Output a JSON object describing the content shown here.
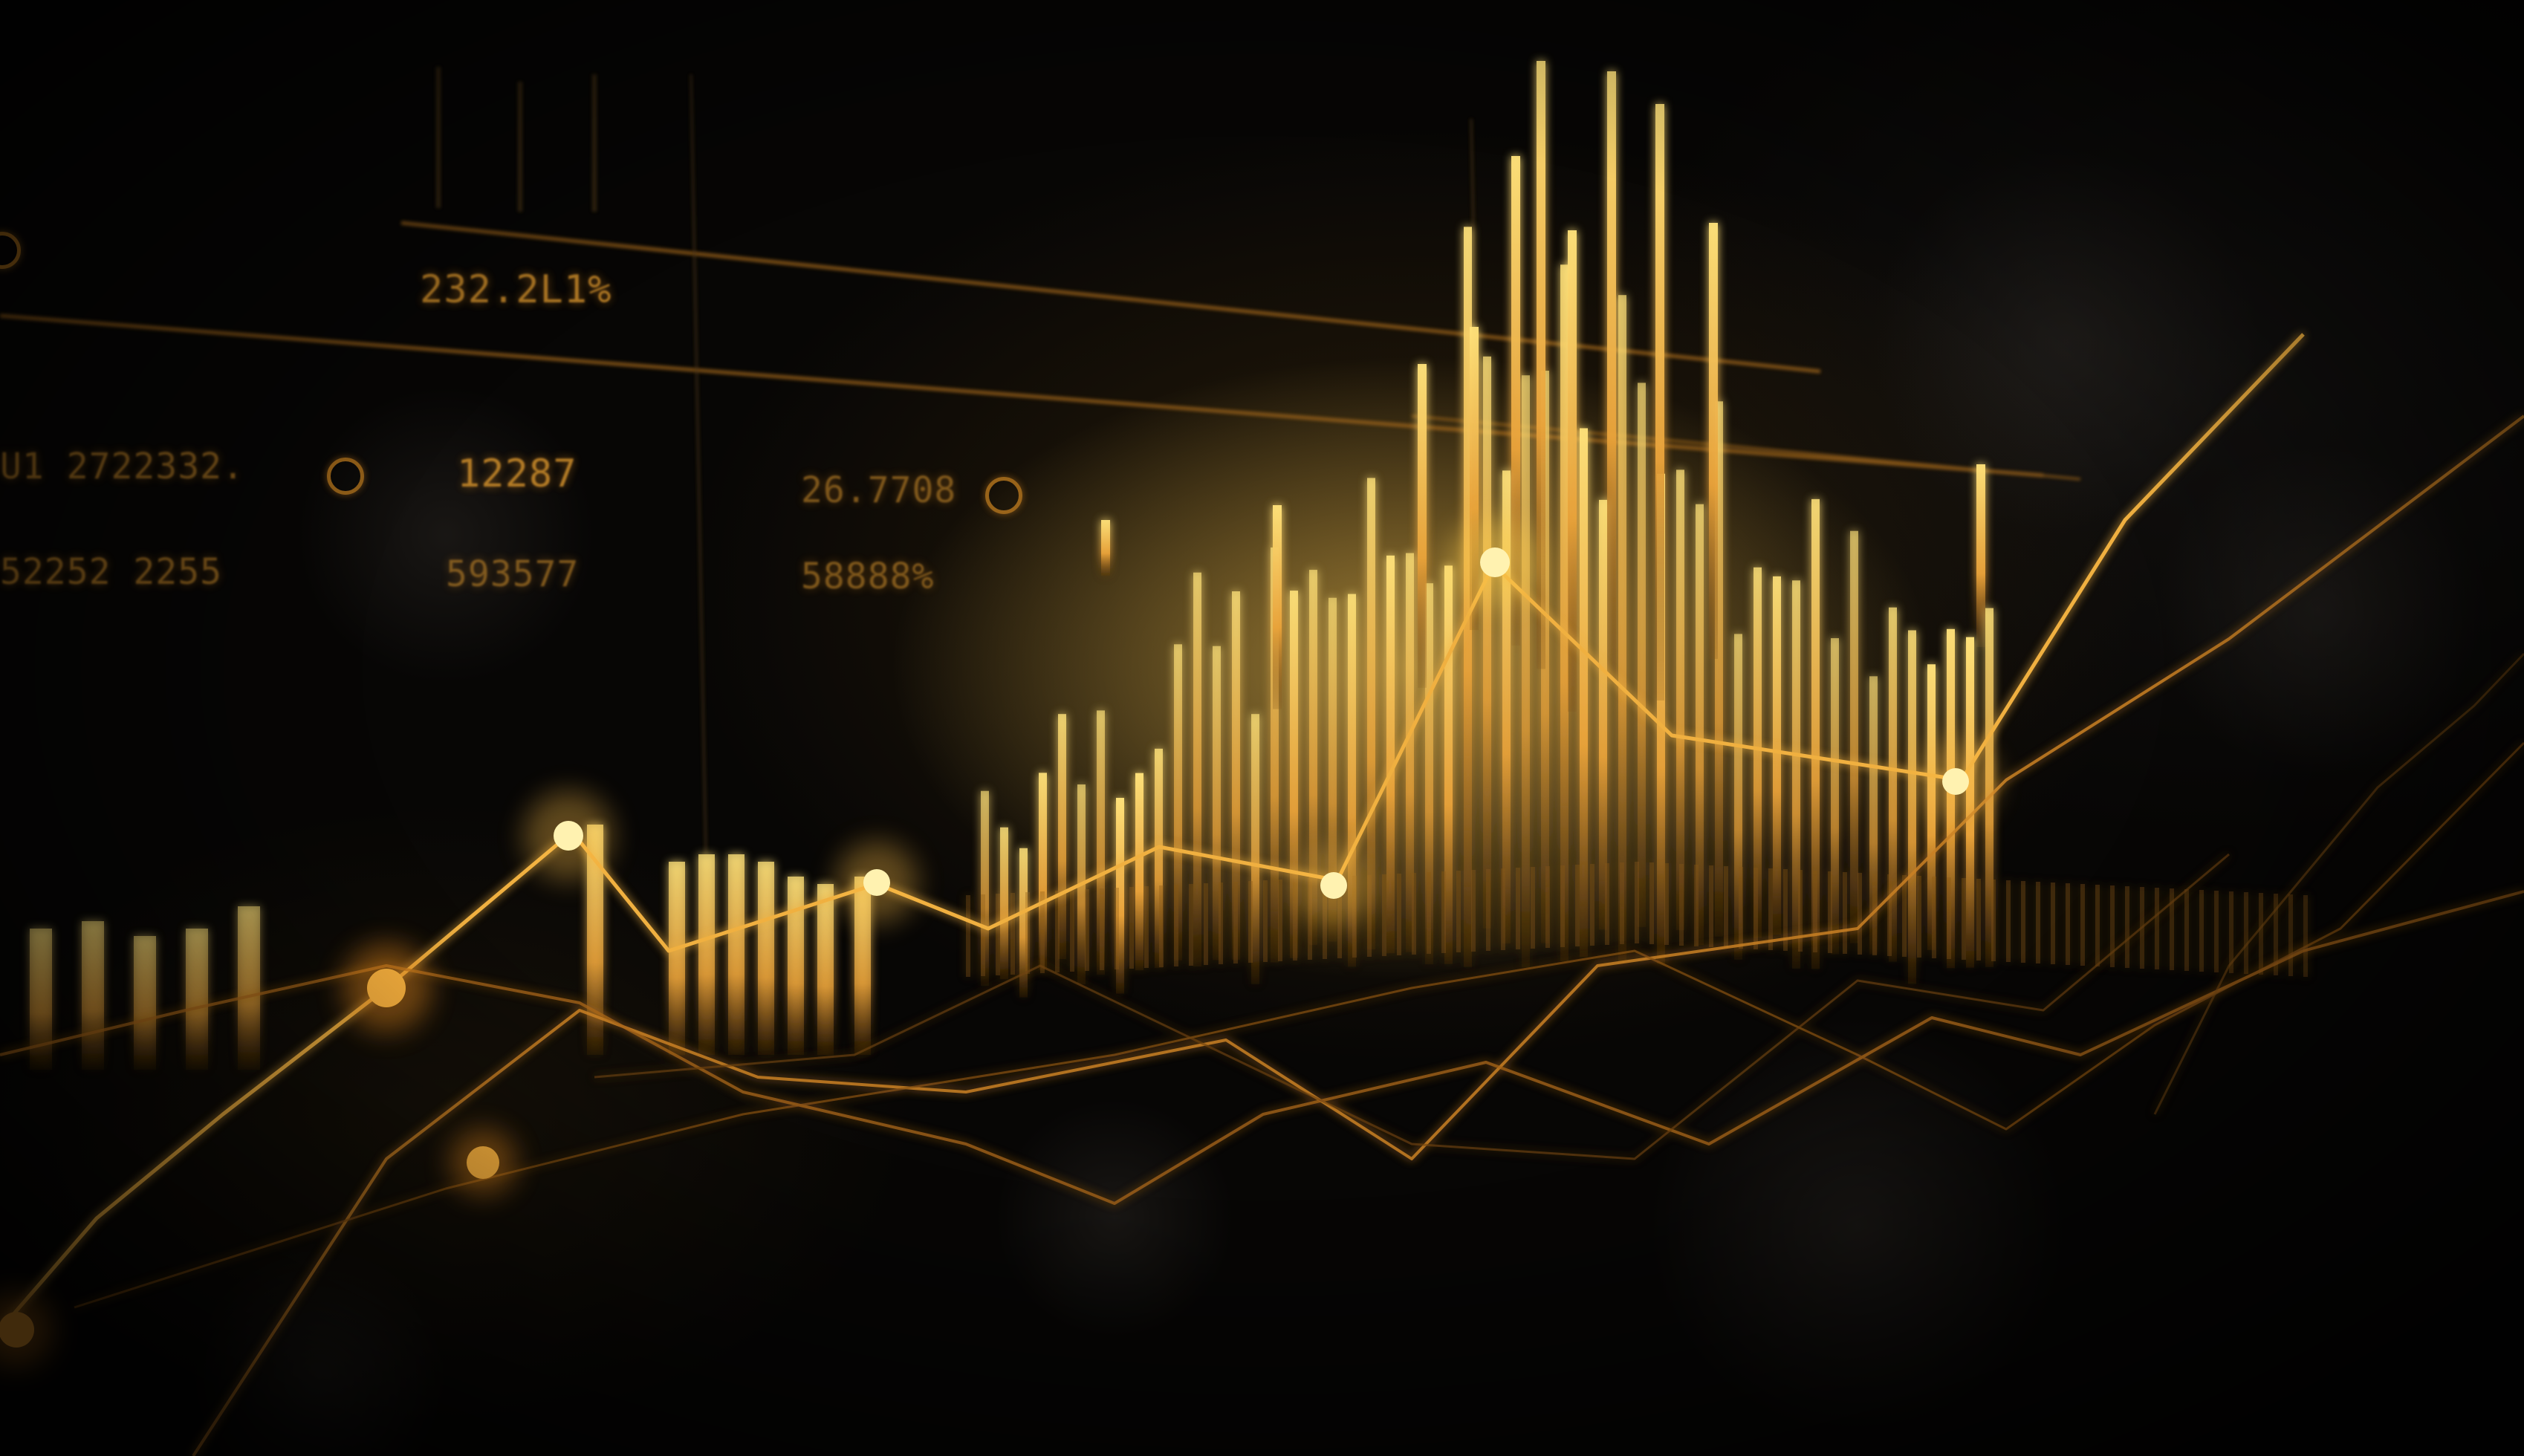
{
  "hud_readouts": {
    "r1": "232.2L1%",
    "r2": "U1 2722332.",
    "r3": "12287",
    "r4": "26.7708",
    "r5": "52252 2255",
    "r6": "593577",
    "r7": "58888%"
  },
  "colors": {
    "background": "#070605",
    "gold_bright": "#ffd966",
    "gold": "#e8a23a",
    "gold_dim": "#8a5a16"
  },
  "icons": [
    "ring-marker-icon",
    "glow-node-icon"
  ]
}
